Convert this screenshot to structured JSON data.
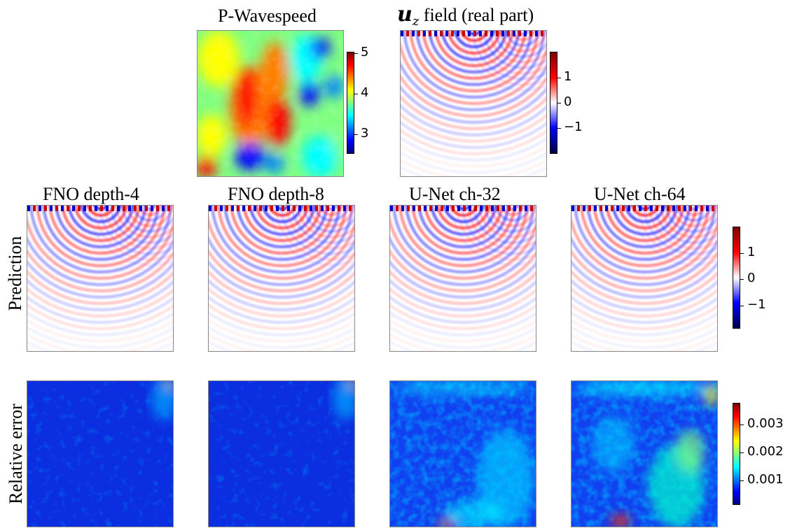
{
  "top": {
    "wavespeed": {
      "title": "P-Wavespeed",
      "colorbar_ticks": [
        "5",
        "4",
        "3"
      ],
      "colormap": "jet"
    },
    "field": {
      "title_symbol": "u",
      "title_subscript": "z",
      "title_text": " field (real part)",
      "colorbar_ticks": [
        "1",
        "0",
        "−1"
      ],
      "colormap": "seismic"
    }
  },
  "columns": [
    "FNO depth-4",
    "FNO depth-8",
    "U-Net ch-32",
    "U-Net ch-64"
  ],
  "rows": {
    "prediction": {
      "label": "Prediction",
      "colorbar_ticks": [
        "1",
        "0",
        "−1"
      ],
      "colormap": "seismic"
    },
    "error": {
      "label": "Relative error",
      "colorbar_ticks": [
        "0.003",
        "0.002",
        "0.001"
      ],
      "colormap": "jet"
    }
  },
  "colors": {
    "jet": [
      "#00007f",
      "#0000ff",
      "#007fff",
      "#00ffff",
      "#7fff7f",
      "#ffff00",
      "#ff7f00",
      "#ff0000",
      "#7f0000"
    ],
    "seismic": [
      "#00004c",
      "#0000ff",
      "#ffffff",
      "#ff0000",
      "#7f0000"
    ]
  }
}
